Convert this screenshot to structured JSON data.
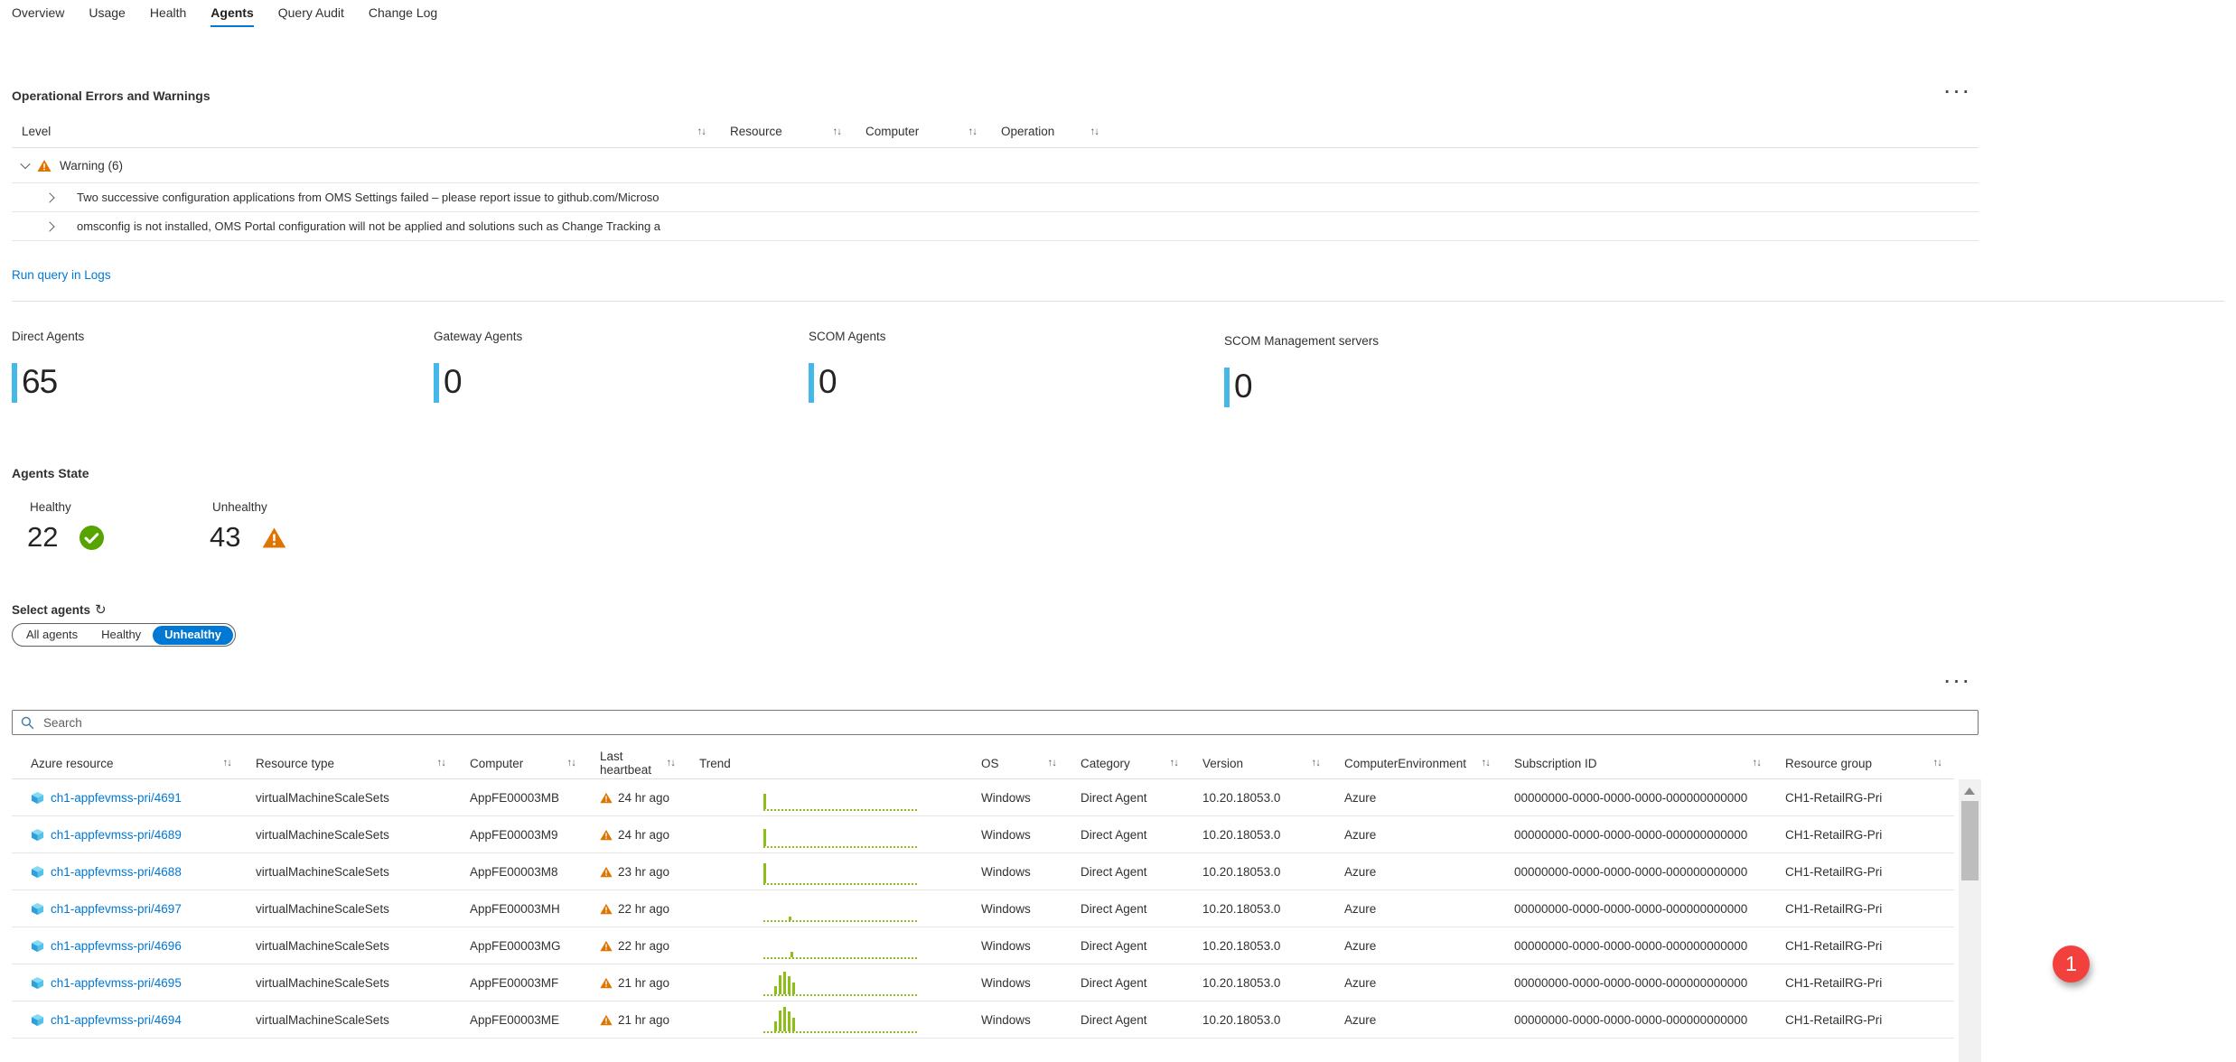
{
  "tabs": {
    "items": [
      {
        "label": "Overview",
        "active": false
      },
      {
        "label": "Usage",
        "active": false
      },
      {
        "label": "Health",
        "active": false
      },
      {
        "label": "Agents",
        "active": true
      },
      {
        "label": "Query Audit",
        "active": false
      },
      {
        "label": "Change Log",
        "active": false
      }
    ]
  },
  "icons": {
    "sort": "↑↓",
    "refresh": "↻",
    "ellipsis": "···",
    "warning": "warning-triangle",
    "healthy": "check-circle",
    "resource": "vmss-cube",
    "search": "magnifier"
  },
  "errors": {
    "title": "Operational Errors and Warnings",
    "columns": [
      "Level",
      "Resource",
      "Computer",
      "Operation"
    ],
    "group": {
      "label": "Warning (6)"
    },
    "rows": [
      {
        "text": "Two successive configuration applications from OMS Settings failed – please report issue to github.com/Microso"
      },
      {
        "text": "omsconfig is not installed, OMS Portal configuration will not be applied and solutions such as Change Tracking a"
      }
    ],
    "link": "Run query in Logs"
  },
  "kpis": [
    {
      "label": "Direct Agents",
      "value": "65"
    },
    {
      "label": "Gateway Agents",
      "value": "0"
    },
    {
      "label": "SCOM Agents",
      "value": "0"
    },
    {
      "label": "SCOM Management servers",
      "value": "0"
    }
  ],
  "agents_state": {
    "title": "Agents State",
    "healthy_label": "Healthy",
    "healthy_value": "22",
    "unhealthy_label": "Unhealthy",
    "unhealthy_value": "43"
  },
  "select_agents": {
    "label": "Select agents",
    "options": [
      {
        "label": "All agents",
        "active": false
      },
      {
        "label": "Healthy",
        "active": false
      },
      {
        "label": "Unhealthy",
        "active": true
      }
    ]
  },
  "search": {
    "placeholder": "Search"
  },
  "agents_table": {
    "columns": [
      {
        "label": "Azure resource",
        "sortable": true
      },
      {
        "label": "Resource type",
        "sortable": true
      },
      {
        "label": "Computer",
        "sortable": true
      },
      {
        "label": "Last heartbeat",
        "sortable": true
      },
      {
        "label": "Trend",
        "sortable": false
      },
      {
        "label": "OS",
        "sortable": true
      },
      {
        "label": "Category",
        "sortable": true
      },
      {
        "label": "Version",
        "sortable": true
      },
      {
        "label": "ComputerEnvironment",
        "sortable": true
      },
      {
        "label": "Subscription ID",
        "sortable": true
      },
      {
        "label": "Resource group",
        "sortable": true
      }
    ],
    "rows": [
      {
        "azure_resource": "ch1-appfevmss-pri/4691",
        "resource_type": "virtualMachineScaleSets",
        "computer": "AppFE00003MB",
        "last_heartbeat": "24 hr ago",
        "os": "Windows",
        "category": "Direct Agent",
        "version": "10.20.18053.0",
        "computer_environment": "Azure",
        "subscription_id": "00000000-0000-0000-0000-000000000000",
        "resource_group": "CH1-RetailRG-Pri",
        "trend": [
          [
            0,
            17
          ]
        ]
      },
      {
        "azure_resource": "ch1-appfevmss-pri/4689",
        "resource_type": "virtualMachineScaleSets",
        "computer": "AppFE00003M9",
        "last_heartbeat": "24 hr ago",
        "os": "Windows",
        "category": "Direct Agent",
        "version": "10.20.18053.0",
        "computer_environment": "Azure",
        "subscription_id": "00000000-0000-0000-0000-000000000000",
        "resource_group": "CH1-RetailRG-Pri",
        "trend": [
          [
            0,
            19
          ]
        ]
      },
      {
        "azure_resource": "ch1-appfevmss-pri/4688",
        "resource_type": "virtualMachineScaleSets",
        "computer": "AppFE00003M8",
        "last_heartbeat": "23 hr ago",
        "os": "Windows",
        "category": "Direct Agent",
        "version": "10.20.18053.0",
        "computer_environment": "Azure",
        "subscription_id": "00000000-0000-0000-0000-000000000000",
        "resource_group": "CH1-RetailRG-Pri",
        "trend": [
          [
            0,
            22
          ]
        ]
      },
      {
        "azure_resource": "ch1-appfevmss-pri/4697",
        "resource_type": "virtualMachineScaleSets",
        "computer": "AppFE00003MH",
        "last_heartbeat": "22 hr ago",
        "os": "Windows",
        "category": "Direct Agent",
        "version": "10.20.18053.0",
        "computer_environment": "Azure",
        "subscription_id": "00000000-0000-0000-0000-000000000000",
        "resource_group": "CH1-RetailRG-Pri",
        "trend": [
          [
            28,
            4
          ]
        ]
      },
      {
        "azure_resource": "ch1-appfevmss-pri/4696",
        "resource_type": "virtualMachineScaleSets",
        "computer": "AppFE00003MG",
        "last_heartbeat": "22 hr ago",
        "os": "Windows",
        "category": "Direct Agent",
        "version": "10.20.18053.0",
        "computer_environment": "Azure",
        "subscription_id": "00000000-0000-0000-0000-000000000000",
        "resource_group": "CH1-RetailRG-Pri",
        "trend": [
          [
            30,
            6
          ]
        ]
      },
      {
        "azure_resource": "ch1-appfevmss-pri/4695",
        "resource_type": "virtualMachineScaleSets",
        "computer": "AppFE00003MF",
        "last_heartbeat": "21 hr ago",
        "os": "Windows",
        "category": "Direct Agent",
        "version": "10.20.18053.0",
        "computer_environment": "Azure",
        "subscription_id": "00000000-0000-0000-0000-000000000000",
        "resource_group": "CH1-RetailRG-Pri",
        "trend": [
          [
            12,
            9
          ],
          [
            17,
            21
          ],
          [
            22,
            25
          ],
          [
            27,
            20
          ],
          [
            32,
            13
          ]
        ]
      },
      {
        "azure_resource": "ch1-appfevmss-pri/4694",
        "resource_type": "virtualMachineScaleSets",
        "computer": "AppFE00003ME",
        "last_heartbeat": "21 hr ago",
        "os": "Windows",
        "category": "Direct Agent",
        "version": "10.20.18053.0",
        "computer_environment": "Azure",
        "subscription_id": "00000000-0000-0000-0000-000000000000",
        "resource_group": "CH1-RetailRG-Pri",
        "trend": [
          [
            12,
            11
          ],
          [
            17,
            23
          ],
          [
            22,
            27
          ],
          [
            27,
            22
          ],
          [
            32,
            15
          ]
        ]
      }
    ]
  },
  "annotation": {
    "badge": "1"
  },
  "colors": {
    "accent": "#0078d4",
    "warning": "#dd7500",
    "healthy": "#57a300",
    "trend": "#8cbd18",
    "kpi_bar": "#44b8e8",
    "badge": "#f2403d"
  }
}
